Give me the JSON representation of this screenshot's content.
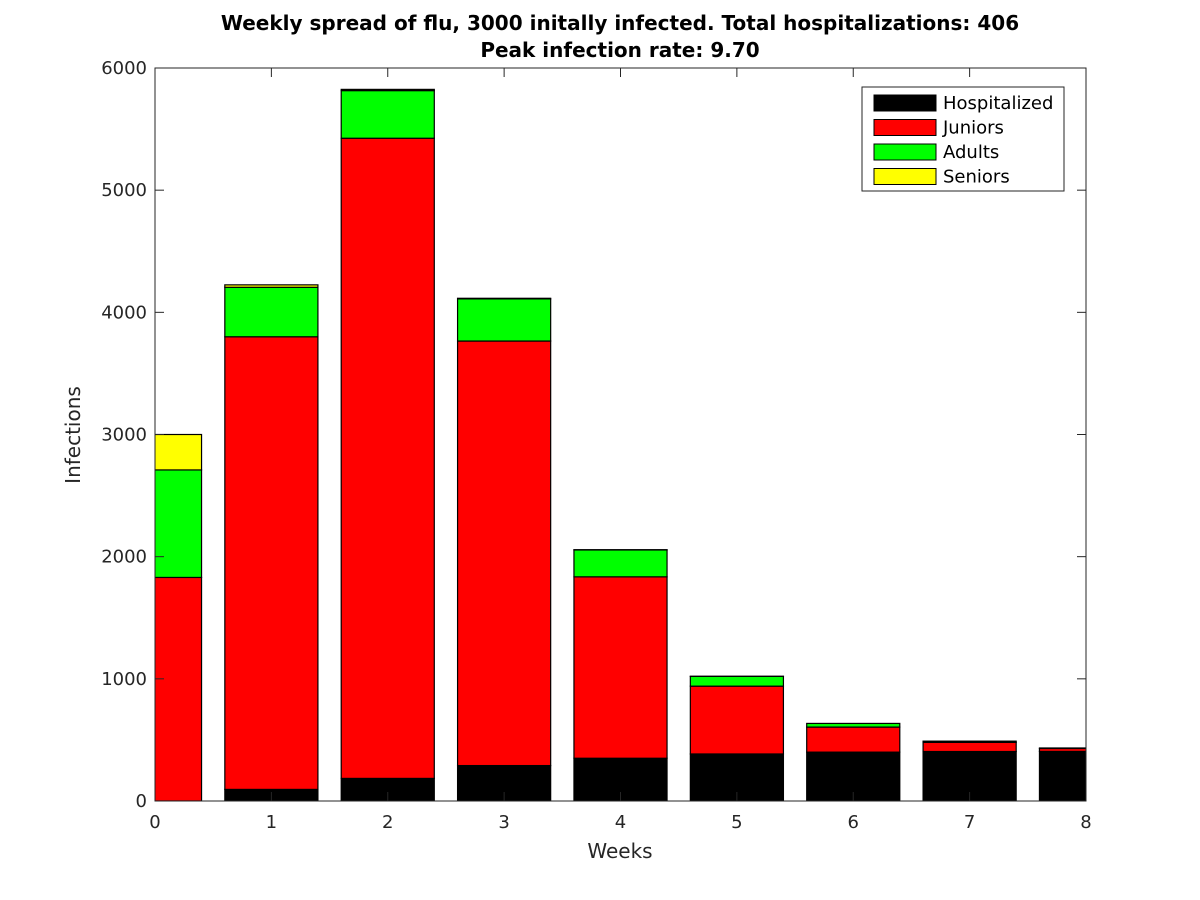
{
  "chart_data": {
    "type": "bar",
    "stacked": true,
    "title": "Weekly spread of flu, 3000 initally infected. Total hospitalizations: 406",
    "subtitle": "Peak infection rate: 9.70",
    "xlabel": "Weeks",
    "ylabel": "Infections",
    "x": [
      0,
      1,
      2,
      3,
      4,
      5,
      6,
      7,
      8
    ],
    "xlim": [
      0,
      8
    ],
    "ylim": [
      0,
      6000
    ],
    "x_ticks": [
      "0",
      "1",
      "2",
      "3",
      "4",
      "5",
      "6",
      "7",
      "8"
    ],
    "y_ticks": [
      "0",
      "1000",
      "2000",
      "3000",
      "4000",
      "5000",
      "6000"
    ],
    "grid": false,
    "legend_position": "top-right",
    "series": [
      {
        "name": "Hospitalized",
        "color": "#000000",
        "values": [
          0,
          95,
          185,
          290,
          350,
          385,
          400,
          405,
          406
        ]
      },
      {
        "name": "Juniors",
        "color": "#ff0000",
        "values": [
          1830,
          3705,
          5240,
          3475,
          1485,
          555,
          205,
          75,
          24
        ]
      },
      {
        "name": "Adults",
        "color": "#00ff00",
        "values": [
          880,
          405,
          390,
          345,
          220,
          80,
          30,
          10,
          4
        ]
      },
      {
        "name": "Seniors",
        "color": "#ffff00",
        "values": [
          290,
          20,
          10,
          5,
          2,
          1,
          0,
          0,
          0
        ]
      }
    ]
  }
}
